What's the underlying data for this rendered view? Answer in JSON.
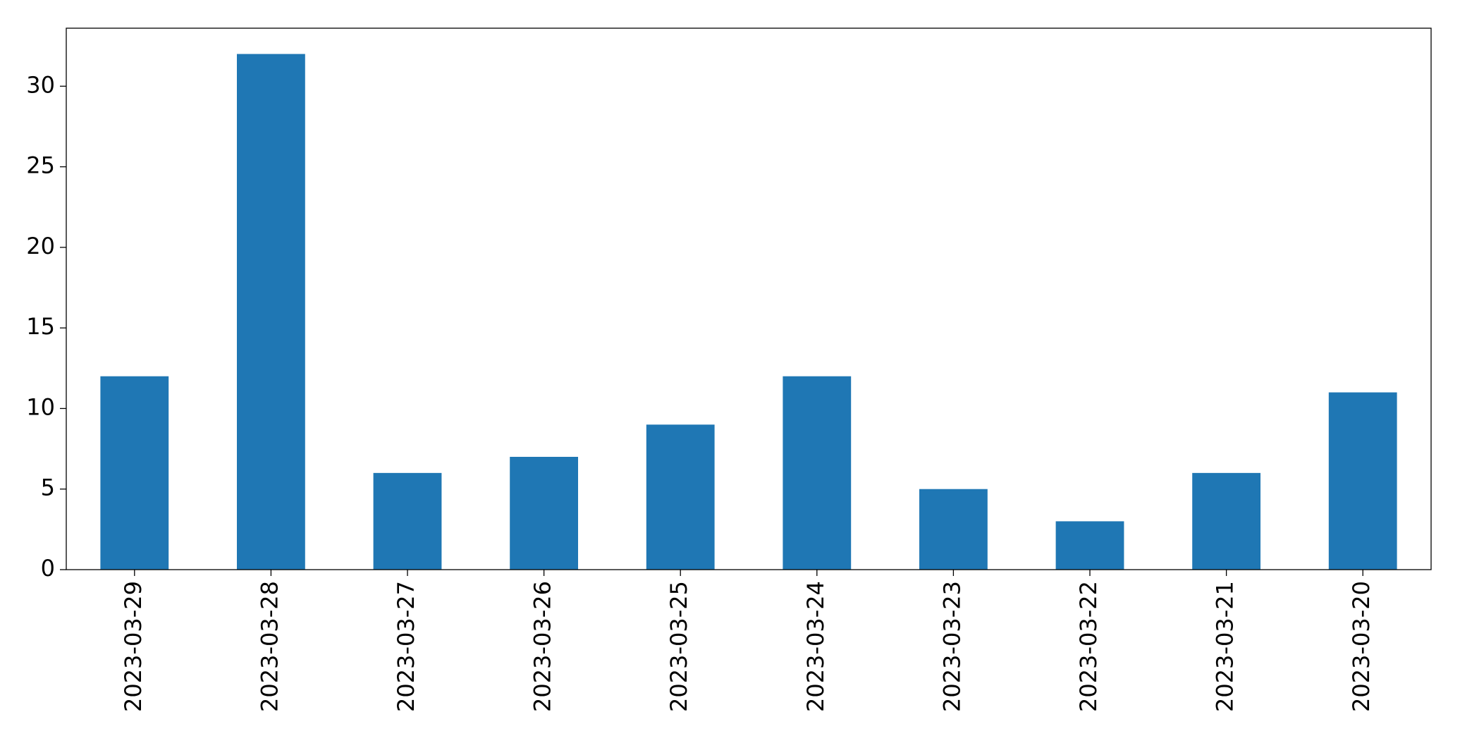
{
  "chart_data": {
    "type": "bar",
    "categories": [
      "2023-03-29",
      "2023-03-28",
      "2023-03-27",
      "2023-03-26",
      "2023-03-25",
      "2023-03-24",
      "2023-03-23",
      "2023-03-22",
      "2023-03-21",
      "2023-03-20"
    ],
    "values": [
      12,
      32,
      6,
      7,
      9,
      12,
      5,
      3,
      6,
      11
    ],
    "color": "#1f77b4",
    "ylim": [
      0,
      33.6
    ],
    "yticks": [
      0,
      5,
      10,
      15,
      20,
      25,
      30
    ],
    "grid": false
  }
}
